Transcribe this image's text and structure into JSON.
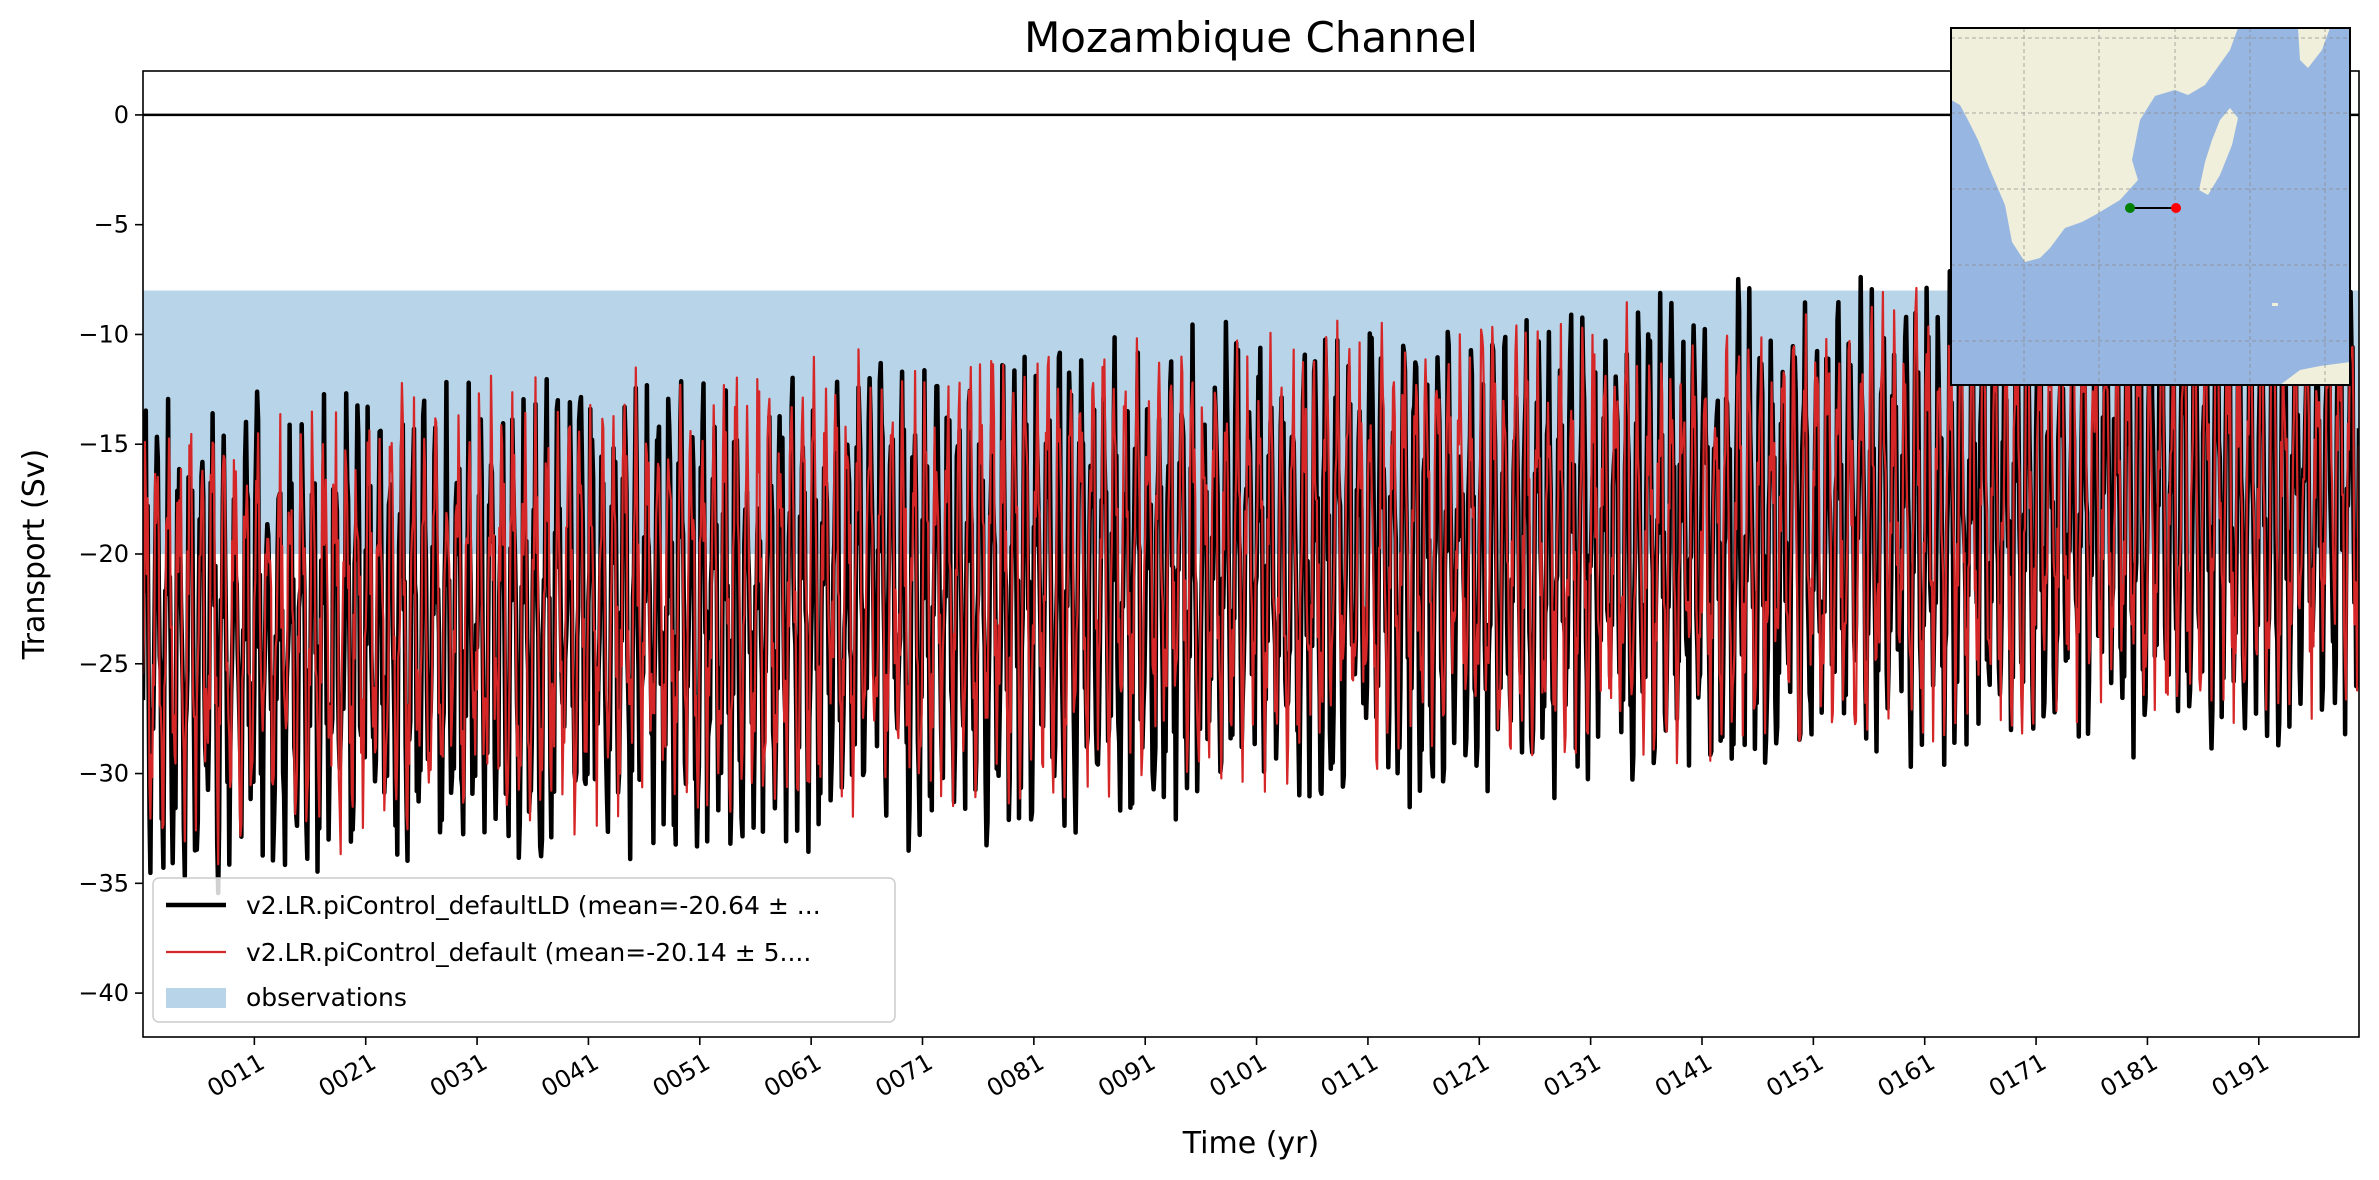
{
  "chart_data": {
    "type": "line",
    "title": "Mozambique Channel",
    "xlabel": "Time (yr)",
    "ylabel": "Transport (Sv)",
    "xlim": [
      1,
      200
    ],
    "ylim": [
      -42,
      2
    ],
    "grid": false,
    "x_ticks": [
      11,
      21,
      31,
      41,
      51,
      61,
      71,
      81,
      91,
      101,
      111,
      121,
      131,
      141,
      151,
      161,
      171,
      181,
      191
    ],
    "x_tick_labels": [
      "0011",
      "0021",
      "0031",
      "0041",
      "0051",
      "0061",
      "0071",
      "0081",
      "0091",
      "0101",
      "0111",
      "0121",
      "0131",
      "0141",
      "0151",
      "0161",
      "0171",
      "0181",
      "0191"
    ],
    "y_ticks": [
      0,
      -5,
      -10,
      -15,
      -20,
      -25,
      -30,
      -35,
      -40
    ],
    "y_tick_labels": [
      "0",
      "−5",
      "−10",
      "−15",
      "−20",
      "−25",
      "−30",
      "−35",
      "−40"
    ],
    "zero_line": 0,
    "observations_band": {
      "name": "observations",
      "ymin": -20,
      "ymax": -8,
      "color": "#b7d4e8"
    },
    "series": [
      {
        "name": "v2.LR.piControl_defaultLD (mean=-20.64 ± ...",
        "color": "#000000",
        "mean": -20.64,
        "trend_start": -24.5,
        "trend_end": -17.0,
        "amplitude": 7.5,
        "seed": 7,
        "samples_per_year": 12
      },
      {
        "name": "v2.LR.piControl_default (mean=-20.14 ± 5....",
        "color": "#d62728",
        "mean": -20.14,
        "trend_start": -23.5,
        "trend_end": -17.0,
        "amplitude": 7.0,
        "seed": 19,
        "samples_per_year": 12
      }
    ],
    "legend_location": "lower left",
    "inset_map": {
      "region": "Southern Africa / Mozambique Channel",
      "section_west_color": "#008000",
      "section_east_color": "#ff0000",
      "ocean_color": "#97b6e1",
      "land_color": "#efefdb"
    }
  }
}
